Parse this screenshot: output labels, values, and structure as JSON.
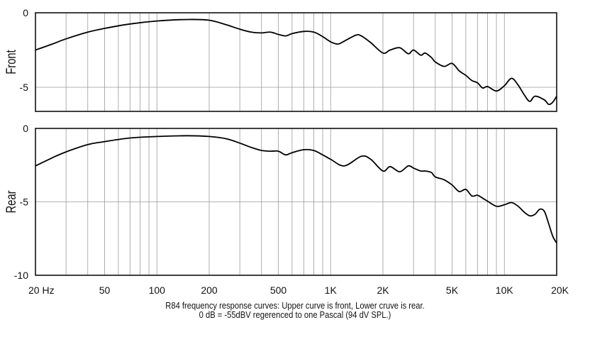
{
  "caption": {
    "line1": "R84 frequency response curves: Upper curve is front, Lower cruve is rear.",
    "line2": "0 dB = -55dBV regerenced to one Pascal (94 dV SPL.)"
  },
  "chart_data": [
    {
      "type": "line",
      "ylabel": "Front",
      "xscale": "log",
      "xlim": [
        20,
        20000
      ],
      "ylim": [
        -6.5,
        0
      ],
      "yticks": [
        0,
        -5
      ],
      "xticks": [
        20,
        50,
        100,
        200,
        500,
        1000,
        2000,
        5000,
        10000,
        20000
      ],
      "xtick_labels": [
        "20 Hz",
        "50",
        "100",
        "200",
        "500",
        "1K",
        "2K",
        "5K",
        "10K",
        "20K"
      ],
      "grid": true,
      "series": [
        {
          "x": [
            20,
            25,
            30,
            40,
            50,
            70,
            100,
            150,
            200,
            250,
            300,
            350,
            400,
            450,
            500,
            550,
            600,
            700,
            800,
            900,
            1000,
            1100,
            1200,
            1400,
            1500,
            1700,
            2000,
            2200,
            2500,
            2800,
            3000,
            3300,
            3500,
            3800,
            4000,
            4500,
            5000,
            5500,
            6000,
            6500,
            7000,
            7500,
            8000,
            9000,
            10000,
            11000,
            12000,
            13000,
            14000,
            15000,
            17000,
            18000,
            19000,
            20000
          ],
          "y": [
            -2.5,
            -2.1,
            -1.75,
            -1.3,
            -1.05,
            -0.75,
            -0.55,
            -0.45,
            -0.5,
            -0.8,
            -1.1,
            -1.3,
            -1.35,
            -1.3,
            -1.45,
            -1.55,
            -1.4,
            -1.25,
            -1.3,
            -1.6,
            -1.95,
            -2.1,
            -1.9,
            -1.5,
            -1.55,
            -2.0,
            -2.7,
            -2.5,
            -2.35,
            -2.75,
            -2.5,
            -2.85,
            -2.7,
            -3.0,
            -3.3,
            -3.6,
            -3.4,
            -3.9,
            -4.2,
            -4.55,
            -4.7,
            -5.05,
            -4.95,
            -5.25,
            -4.9,
            -4.4,
            -4.85,
            -5.5,
            -5.95,
            -5.6,
            -5.85,
            -6.15,
            -6.0,
            -5.6
          ]
        }
      ]
    },
    {
      "type": "line",
      "ylabel": "Rear",
      "xscale": "log",
      "xlim": [
        20,
        20000
      ],
      "ylim": [
        -10,
        0
      ],
      "yticks": [
        0,
        -5,
        -10
      ],
      "xticks": [
        20,
        50,
        100,
        200,
        500,
        1000,
        2000,
        5000,
        10000,
        20000
      ],
      "xtick_labels": [
        "20 Hz",
        "50",
        "100",
        "200",
        "500",
        "1K",
        "2K",
        "5K",
        "10K",
        "20K"
      ],
      "grid": true,
      "series": [
        {
          "x": [
            20,
            25,
            30,
            40,
            50,
            70,
            100,
            150,
            200,
            250,
            300,
            350,
            400,
            450,
            500,
            550,
            600,
            700,
            800,
            900,
            1000,
            1200,
            1500,
            1700,
            2000,
            2200,
            2500,
            2800,
            3000,
            3300,
            3500,
            3800,
            4000,
            4500,
            5000,
            5500,
            6000,
            6500,
            7000,
            7500,
            8000,
            9000,
            10000,
            11000,
            12000,
            13000,
            14000,
            15000,
            16000,
            17000,
            18000,
            19000,
            20000
          ],
          "y": [
            -2.55,
            -2.0,
            -1.6,
            -1.1,
            -0.9,
            -0.65,
            -0.55,
            -0.5,
            -0.55,
            -0.7,
            -1.0,
            -1.3,
            -1.5,
            -1.55,
            -1.55,
            -1.8,
            -1.65,
            -1.45,
            -1.5,
            -1.8,
            -2.1,
            -2.55,
            -1.9,
            -2.1,
            -2.9,
            -2.6,
            -2.95,
            -2.55,
            -2.7,
            -2.9,
            -2.9,
            -3.0,
            -3.3,
            -3.5,
            -3.85,
            -4.3,
            -4.15,
            -4.6,
            -4.55,
            -4.75,
            -4.95,
            -5.3,
            -5.2,
            -5.05,
            -5.3,
            -5.7,
            -5.95,
            -5.85,
            -5.5,
            -5.65,
            -6.5,
            -7.35,
            -7.8
          ]
        }
      ]
    }
  ]
}
